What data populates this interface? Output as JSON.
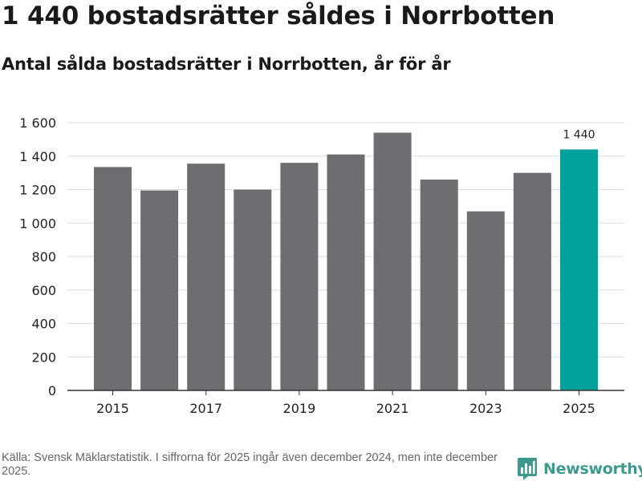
{
  "header": {
    "title": "1 440 bostadsrätter såldes i Norrbotten",
    "subtitle": "Antal sålda bostadsrätter i Norrbotten, år för år"
  },
  "footer": {
    "source": "Källa: Svensk Mäklarstatistik. I siffrorna för 2025 ingår även december 2024, men inte december 2025.",
    "brand": "Newsworthy",
    "brand_icon": "bar-chart-logo-icon"
  },
  "colors": {
    "bar": "#6d6d72",
    "highlight": "#00a19a",
    "grid": "#dcdcdc",
    "axis": "#333333",
    "brand": "#3d9a8f"
  },
  "chart_data": {
    "type": "bar",
    "title": "Antal sålda bostadsrätter i Norrbotten, år för år",
    "xlabel": "",
    "ylabel": "",
    "categories": [
      "2015",
      "2016",
      "2017",
      "2018",
      "2019",
      "2020",
      "2021",
      "2022",
      "2023",
      "2024",
      "2025"
    ],
    "values": [
      1335,
      1195,
      1355,
      1200,
      1360,
      1410,
      1540,
      1260,
      1070,
      1300,
      1440
    ],
    "highlight_index": 10,
    "data_labels": [
      {
        "index": 10,
        "text": "1 440"
      }
    ],
    "x_tick_labels": [
      "2015",
      "",
      "2017",
      "",
      "2019",
      "",
      "2021",
      "",
      "2023",
      "",
      "2025"
    ],
    "y_ticks": [
      0,
      200,
      400,
      600,
      800,
      1000,
      1200,
      1400,
      1600
    ],
    "y_tick_labels": [
      "0",
      "200",
      "400",
      "600",
      "800",
      "1 000",
      "1 200",
      "1 400",
      "1 600"
    ],
    "ylim": [
      0,
      1600
    ],
    "grid": true
  }
}
